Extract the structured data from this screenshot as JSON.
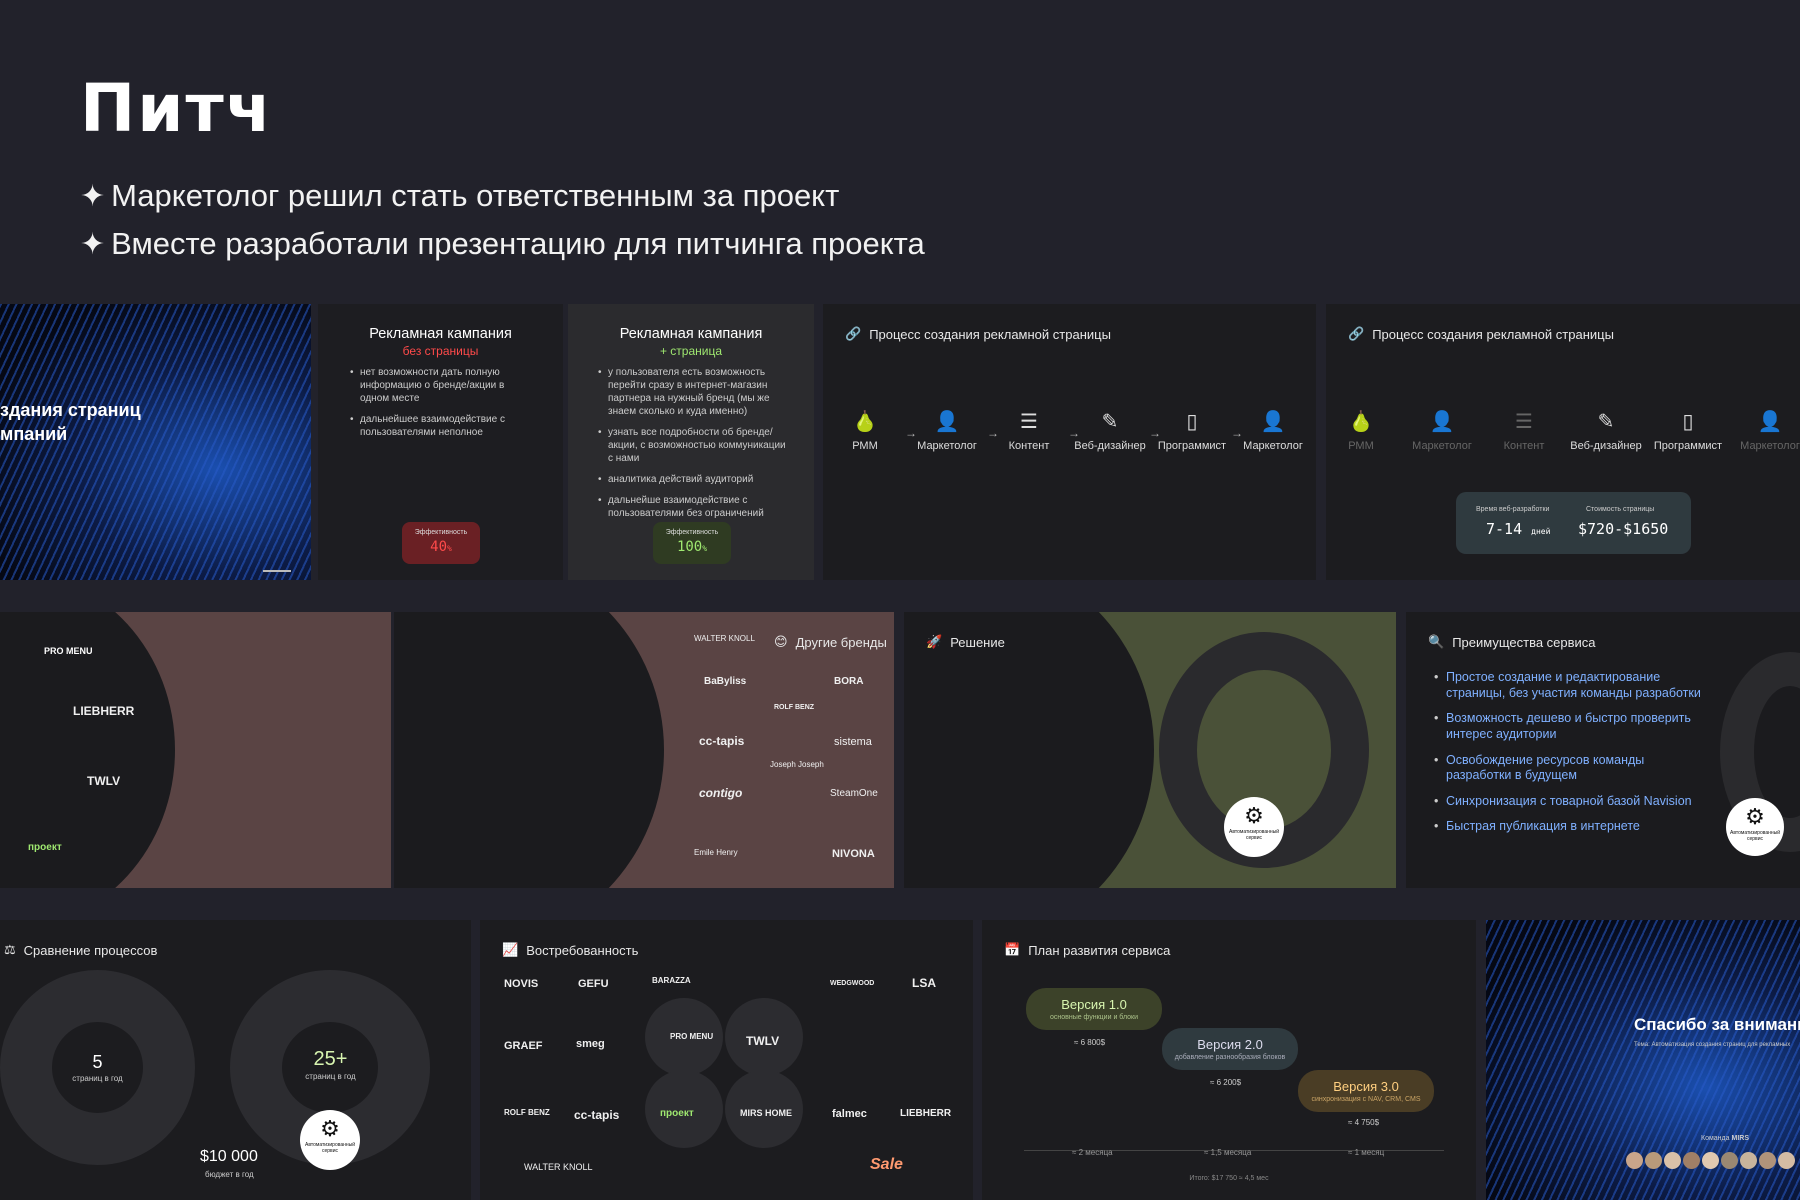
{
  "page": {
    "title": "Питч",
    "bullets": [
      "Маркетолог решил стать ответственным за проект",
      "Вместе разработали презентацию для питчинга проекта"
    ]
  },
  "slide1": {
    "line1": "здания страниц",
    "line2": "мпаний"
  },
  "slide2": {
    "title": "Рекламная кампания",
    "subtitle": "без страницы",
    "items": [
      "нет возможности дать полную информацию о бренде/акции в одном месте",
      "дальнейшее взаимодействие с пользователями неполное"
    ],
    "eff_label": "Эффективность",
    "eff_value": "40",
    "eff_unit": "%"
  },
  "slide3": {
    "title": "Рекламная кампания",
    "subtitle": "+ страница",
    "items": [
      "у пользователя есть возможность перейти сразу в интернет-магазин партнера на нужный бренд (мы же знаем сколько и куда именно)",
      "узнать все подробности об бренде/акции, с возможностью коммуникации с нами",
      "аналитика действий аудиторий",
      "дальнейше взаимодействие с пользователями без ограничений"
    ],
    "eff_label": "Эффективность",
    "eff_value": "100",
    "eff_unit": "%"
  },
  "slide4": {
    "header": "Процесс создания рекламной страницы",
    "steps": [
      "РММ",
      "Маркетолог",
      "Контент",
      "Веб-дизайнер",
      "Программист",
      "Маркетолог"
    ]
  },
  "slide5": {
    "header": "Процесс создания рекламной страницы",
    "steps": [
      "РММ",
      "Маркетолог",
      "Контент",
      "Веб-дизайнер",
      "Программист",
      "Маркетолог"
    ],
    "time_label": "Время веб-разработки",
    "time_value": "7-14",
    "time_unit": "дней",
    "cost_label": "Стоимость страницы",
    "cost_value": "$720-$1650"
  },
  "row2": {
    "brands_a": [
      "PRO MENU",
      "LIEBHERR",
      "TWLV",
      "проект"
    ],
    "other_brands_header": "Другие бренды",
    "other_brands": [
      "WALTER KNOLL",
      "BaByliss",
      "BORA",
      "ROLF BENZ",
      "cc-tapis",
      "sistema",
      "Joseph Joseph",
      "contigo",
      "SteamOne",
      "Emile Henry",
      "NIVONA"
    ],
    "solution_header": "Решение",
    "automated_service": "Автоматизированный сервис",
    "advantages_header": "Преимущества сервиса",
    "advantages": [
      "Простое создание и редактирование страницы, без участия команды разработки",
      "Возможность дешево и быстро проверить интерес аудитории",
      "Освобождение ресурсов команды разработки в будущем",
      "Синхронизация с товарной базой Navision",
      "Быстрая публикация в интернете"
    ]
  },
  "row3": {
    "compare_header": "Сравнение процессов",
    "left_count": "5",
    "left_count_label": "страниц в год",
    "right_count": "25+",
    "right_count_label": "страниц в год",
    "budget": "$10 000",
    "budget_label": "бюджет в год",
    "demand_header": "Востребованность",
    "demand_brands": [
      "NOVIS",
      "GEFU",
      "BARAZZA",
      "WEDGWOOD",
      "LSA",
      "GRAEF",
      "smeg",
      "PRO MENU",
      "TWLV",
      "ROLF BENZ",
      "cc-tapis",
      "проект",
      "MIRS HOME",
      "falmec",
      "LIEBHERR",
      "WALTER KNOLL",
      "Sale"
    ],
    "plan_header": "План развития сервиса",
    "versions": [
      {
        "name": "Версия 1.0",
        "desc": "основные функции и блоки",
        "cost": "≈ 6 800$",
        "time": "≈ 2 месяца"
      },
      {
        "name": "Версия 2.0",
        "desc": "добавление разнообразия блоков",
        "cost": "≈ 6 200$",
        "time": "≈ 1,5 месяца"
      },
      {
        "name": "Версия 3.0",
        "desc": "синхронизация с NAV, CRM, CMS",
        "cost": "≈ 4 750$",
        "time": "≈ 1 месяц"
      }
    ],
    "plan_total": "Итого: $17 750 ≈ 4,5 мес",
    "thanks": "Спасибо за внимание",
    "thanks_sub": "Тема: Автоматизация создания страниц для рекламных",
    "team_label": "Команда",
    "team_brand": "MIRS"
  },
  "colors": {
    "bg": "#22222b",
    "red": "#ff4a4a",
    "green": "#9fe870",
    "blue": "#7fb0ff"
  }
}
